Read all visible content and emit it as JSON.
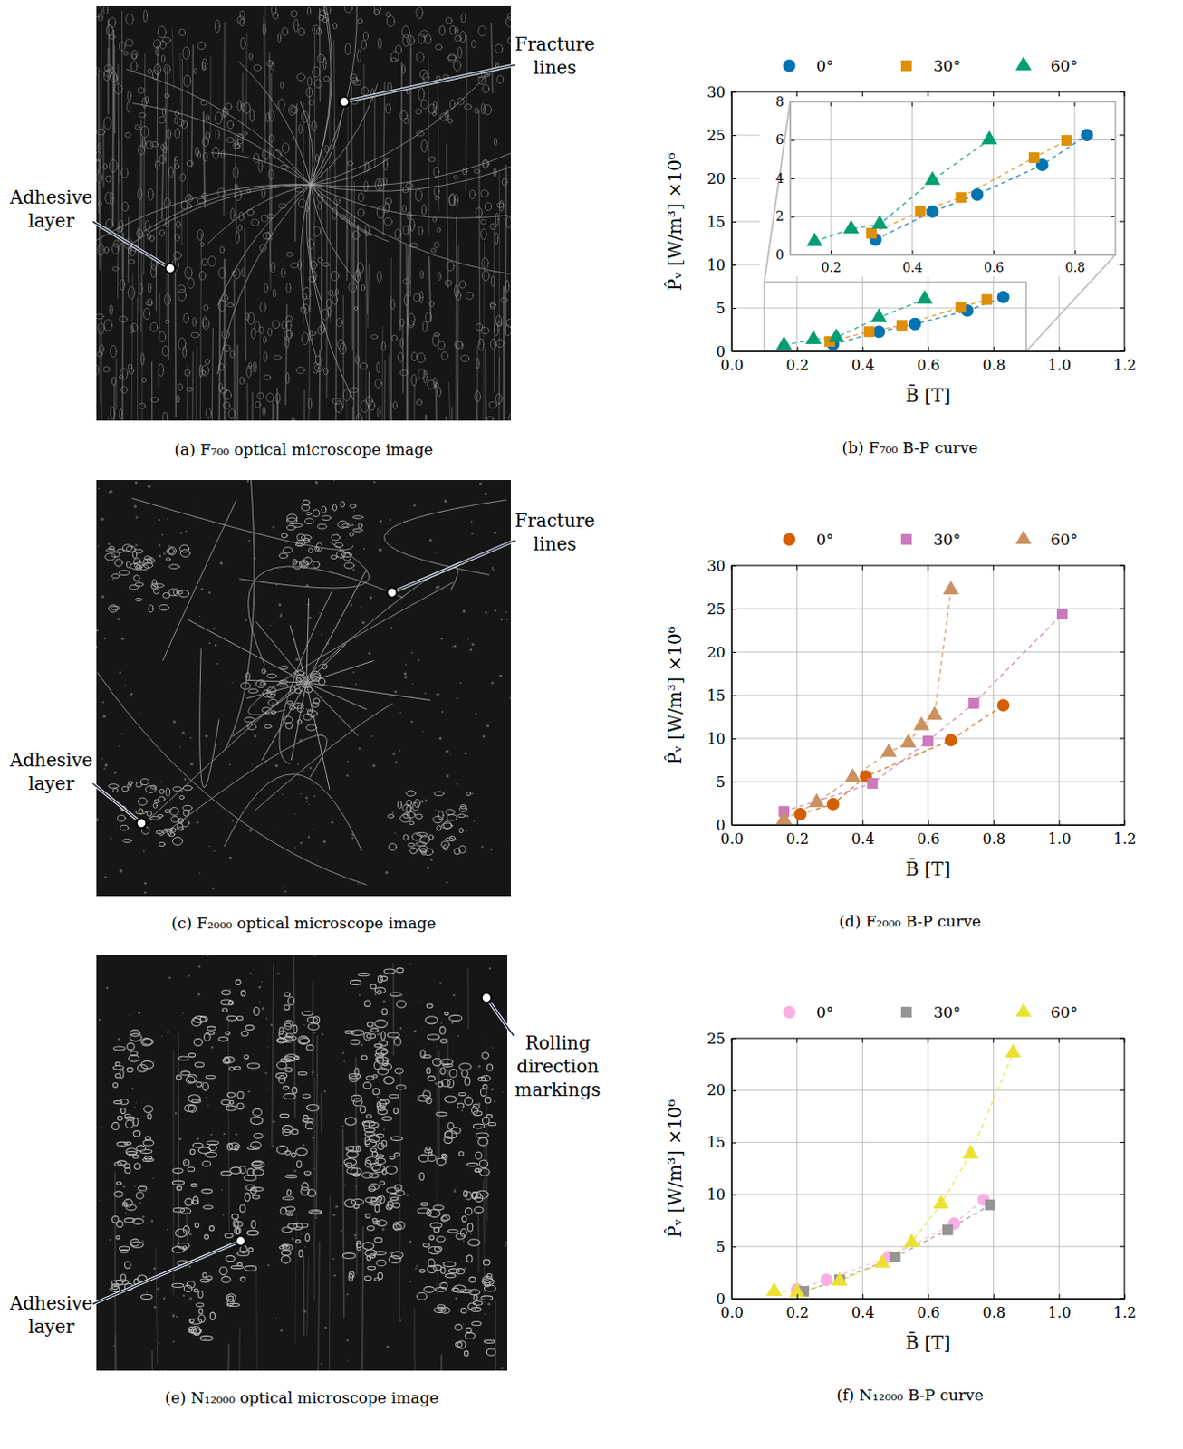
{
  "chart_data": [
    {
      "type": "line",
      "caption": "(b) F₇₀₀ B-P curve",
      "x_label": "B̄ [T]",
      "y_label": "P̂ᵥ [W/m³] ×10⁶",
      "xlim": [
        0,
        1.2
      ],
      "ylim": [
        0,
        30
      ],
      "xticks": [
        {
          "value": 0,
          "label": "0.0"
        },
        0.2,
        0.4,
        0.6,
        0.8,
        {
          "value": 1,
          "label": "1.0"
        },
        1.2
      ],
      "yticks": [
        0,
        5,
        10,
        15,
        20,
        25,
        30
      ],
      "grid": true,
      "legend": "top",
      "line_style": "dashed",
      "series": [
        {
          "name": "0°",
          "color": "#0173b2",
          "marker": "circle",
          "x": [
            0.31,
            0.45,
            0.56,
            0.72,
            0.83
          ],
          "values": [
            0.8,
            2.26,
            3.15,
            4.7,
            6.26
          ]
        },
        {
          "name": "30°",
          "color": "#de8f05",
          "marker": "square",
          "x": [
            0.3,
            0.42,
            0.52,
            0.7,
            0.78
          ],
          "values": [
            1.13,
            2.26,
            3.0,
            5.08,
            5.98
          ]
        },
        {
          "name": "60°",
          "color": "#029e73",
          "marker": "triangle",
          "x": [
            0.16,
            0.25,
            0.32,
            0.45,
            0.59
          ],
          "values": [
            0.7,
            1.36,
            1.6,
            3.9,
            6.02
          ]
        }
      ],
      "inset": {
        "xlim": [
          0.1,
          0.9
        ],
        "ylim": [
          0,
          8
        ],
        "xticks": [
          0.2,
          0.4,
          0.6,
          0.8
        ],
        "yticks": [
          0,
          2,
          4,
          6,
          8
        ],
        "grid": true
      }
    },
    {
      "type": "line",
      "caption": "(d) F₂₀₀₀ B-P curve",
      "x_label": "B̄ [T]",
      "y_label": "P̂ᵥ [W/m³] ×10⁶",
      "xlim": [
        0,
        1.2
      ],
      "ylim": [
        0,
        30
      ],
      "xticks": [
        {
          "value": 0,
          "label": "0.0"
        },
        0.2,
        0.4,
        0.6,
        0.8,
        {
          "value": 1,
          "label": "1.0"
        },
        1.2
      ],
      "yticks": [
        0,
        5,
        10,
        15,
        20,
        25,
        30
      ],
      "grid": true,
      "legend": "top",
      "line_style": "dashed",
      "series": [
        {
          "name": "0°",
          "color": "#d55e00",
          "marker": "circle",
          "x": [
            0.21,
            0.31,
            0.41,
            0.67,
            0.83
          ],
          "values": [
            1.25,
            2.4,
            5.6,
            9.8,
            13.85
          ]
        },
        {
          "name": "30°",
          "color": "#cc78bc",
          "marker": "square",
          "x": [
            0.16,
            0.43,
            0.6,
            0.74,
            1.01
          ],
          "values": [
            1.56,
            4.8,
            9.7,
            14.06,
            24.4
          ]
        },
        {
          "name": "60°",
          "color": "#ca9161",
          "marker": "triangle",
          "x": [
            0.16,
            0.26,
            0.37,
            0.48,
            0.54,
            0.58,
            0.62,
            0.67
          ],
          "values": [
            0.6,
            2.6,
            5.5,
            8.4,
            9.5,
            11.5,
            12.7,
            27.2
          ]
        }
      ]
    },
    {
      "type": "line",
      "caption": "(f) N₁₂₀₀₀ B-P curve",
      "x_label": "B̄ [T]",
      "y_label": "P̂ᵥ [W/m³] ×10⁶",
      "xlim": [
        0,
        1.2
      ],
      "ylim": [
        0,
        25
      ],
      "xticks": [
        {
          "value": 0,
          "label": "0.0"
        },
        0.2,
        0.4,
        0.6,
        0.8,
        {
          "value": 1,
          "label": "1.0"
        },
        1.2
      ],
      "yticks": [
        0,
        5,
        10,
        15,
        20,
        25
      ],
      "grid": true,
      "legend": "top",
      "line_style": "dashed",
      "series": [
        {
          "name": "0°",
          "color": "#fbafe4",
          "marker": "circle",
          "x": [
            0.2,
            0.29,
            0.48,
            0.68,
            0.77
          ],
          "values": [
            0.87,
            1.8,
            4.0,
            7.2,
            9.5
          ]
        },
        {
          "name": "30°",
          "color": "#949494",
          "marker": "square",
          "x": [
            0.22,
            0.33,
            0.5,
            0.66,
            0.79
          ],
          "values": [
            0.7,
            1.8,
            4.0,
            6.6,
            9.0
          ]
        },
        {
          "name": "60°",
          "color": "#ece133",
          "marker": "triangle",
          "x": [
            0.13,
            0.2,
            0.33,
            0.46,
            0.55,
            0.64,
            0.73,
            0.86
          ],
          "values": [
            0.7,
            0.6,
            1.7,
            3.4,
            5.4,
            9.1,
            13.9,
            23.6
          ]
        }
      ]
    }
  ],
  "images": [
    {
      "caption": "(a) F₇₀₀ optical microscope image",
      "annotations": [
        "Fracture lines",
        "Adhesive layer"
      ]
    },
    {
      "caption": "(c) F₂₀₀₀ optical microscope image",
      "annotations": [
        "Fracture lines",
        "Adhesive layer"
      ]
    },
    {
      "caption": "(e) N₁₂₀₀₀ optical microscope image",
      "annotations": [
        "Adhesive layer",
        "Rolling direction markings"
      ]
    }
  ]
}
